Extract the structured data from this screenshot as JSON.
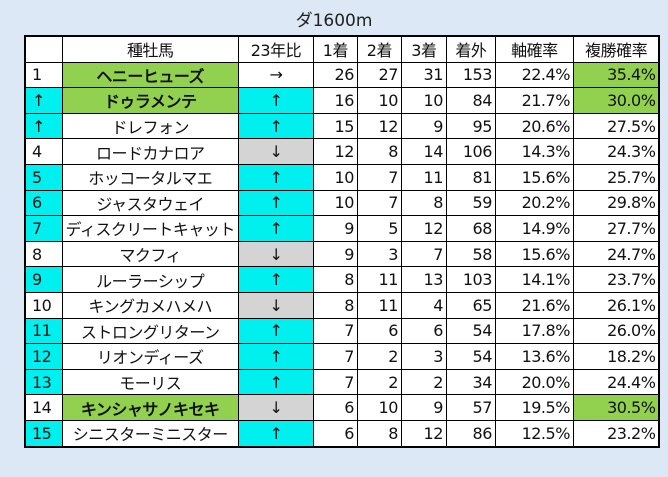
{
  "title": "ダ1600m",
  "colors": {
    "cyan": "#00f0f0",
    "green": "#92d050",
    "gray": "#d4d4d4",
    "background": "#dce8f5"
  },
  "headers": [
    "",
    "種牡馬",
    "23年比",
    "1着",
    "2着",
    "3着",
    "着外",
    "軸確率",
    "複勝確率"
  ],
  "rows": [
    {
      "rank": "1",
      "name": "ヘニーヒューズ",
      "cmp": "→",
      "w1": "26",
      "w2": "27",
      "w3": "31",
      "out": "153",
      "axis": "22.4%",
      "place": "35.4%",
      "rankHl": false,
      "nameHl": true,
      "cmpHl": "none",
      "placeHl": true
    },
    {
      "rank": "↑",
      "name": "ドゥラメンテ",
      "cmp": "↑",
      "w1": "16",
      "w2": "10",
      "w3": "10",
      "out": "84",
      "axis": "21.7%",
      "place": "30.0%",
      "rankHl": true,
      "nameHl": true,
      "cmpHl": "cyan",
      "placeHl": true
    },
    {
      "rank": "↑",
      "name": "ドレフォン",
      "cmp": "↑",
      "w1": "15",
      "w2": "12",
      "w3": "9",
      "out": "95",
      "axis": "20.6%",
      "place": "27.5%",
      "rankHl": true,
      "nameHl": false,
      "cmpHl": "cyan",
      "placeHl": false
    },
    {
      "rank": "4",
      "name": "ロードカナロア",
      "cmp": "↓",
      "w1": "12",
      "w2": "8",
      "w3": "14",
      "out": "106",
      "axis": "14.3%",
      "place": "24.3%",
      "rankHl": false,
      "nameHl": false,
      "cmpHl": "gray",
      "placeHl": false
    },
    {
      "rank": "5",
      "name": "ホッコータルマエ",
      "cmp": "↑",
      "w1": "10",
      "w2": "7",
      "w3": "11",
      "out": "81",
      "axis": "15.6%",
      "place": "25.7%",
      "rankHl": true,
      "nameHl": false,
      "cmpHl": "cyan",
      "placeHl": false
    },
    {
      "rank": "6",
      "name": "ジャスタウェイ",
      "cmp": "↑",
      "w1": "10",
      "w2": "7",
      "w3": "8",
      "out": "59",
      "axis": "20.2%",
      "place": "29.8%",
      "rankHl": true,
      "nameHl": false,
      "cmpHl": "cyan",
      "placeHl": false
    },
    {
      "rank": "7",
      "name": "ディスクリートキャット",
      "cmp": "↑",
      "w1": "9",
      "w2": "5",
      "w3": "12",
      "out": "68",
      "axis": "14.9%",
      "place": "27.7%",
      "rankHl": true,
      "nameHl": false,
      "cmpHl": "cyan",
      "placeHl": false
    },
    {
      "rank": "8",
      "name": "マクフィ",
      "cmp": "↓",
      "w1": "9",
      "w2": "3",
      "w3": "7",
      "out": "58",
      "axis": "15.6%",
      "place": "24.7%",
      "rankHl": false,
      "nameHl": false,
      "cmpHl": "gray",
      "placeHl": false
    },
    {
      "rank": "9",
      "name": "ルーラーシップ",
      "cmp": "↑",
      "w1": "8",
      "w2": "11",
      "w3": "13",
      "out": "103",
      "axis": "14.1%",
      "place": "23.7%",
      "rankHl": true,
      "nameHl": false,
      "cmpHl": "cyan",
      "placeHl": false
    },
    {
      "rank": "10",
      "name": "キングカメハメハ",
      "cmp": "↓",
      "w1": "8",
      "w2": "11",
      "w3": "4",
      "out": "65",
      "axis": "21.6%",
      "place": "26.1%",
      "rankHl": false,
      "nameHl": false,
      "cmpHl": "gray",
      "placeHl": false
    },
    {
      "rank": "11",
      "name": "ストロングリターン",
      "cmp": "↑",
      "w1": "7",
      "w2": "6",
      "w3": "6",
      "out": "54",
      "axis": "17.8%",
      "place": "26.0%",
      "rankHl": true,
      "nameHl": false,
      "cmpHl": "cyan",
      "placeHl": false
    },
    {
      "rank": "12",
      "name": "リオンディーズ",
      "cmp": "↑",
      "w1": "7",
      "w2": "2",
      "w3": "3",
      "out": "54",
      "axis": "13.6%",
      "place": "18.2%",
      "rankHl": true,
      "nameHl": false,
      "cmpHl": "cyan",
      "placeHl": false
    },
    {
      "rank": "13",
      "name": "モーリス",
      "cmp": "↑",
      "w1": "7",
      "w2": "2",
      "w3": "2",
      "out": "34",
      "axis": "20.0%",
      "place": "24.4%",
      "rankHl": true,
      "nameHl": false,
      "cmpHl": "cyan",
      "placeHl": false
    },
    {
      "rank": "14",
      "name": "キンシャサノキセキ",
      "cmp": "↓",
      "w1": "6",
      "w2": "10",
      "w3": "9",
      "out": "57",
      "axis": "19.5%",
      "place": "30.5%",
      "rankHl": false,
      "nameHl": true,
      "cmpHl": "gray",
      "placeHl": true
    },
    {
      "rank": "15",
      "name": "シニスターミニスター",
      "cmp": "↑",
      "w1": "6",
      "w2": "8",
      "w3": "12",
      "out": "86",
      "axis": "12.5%",
      "place": "23.2%",
      "rankHl": true,
      "nameHl": false,
      "cmpHl": "cyan",
      "placeHl": false
    }
  ]
}
